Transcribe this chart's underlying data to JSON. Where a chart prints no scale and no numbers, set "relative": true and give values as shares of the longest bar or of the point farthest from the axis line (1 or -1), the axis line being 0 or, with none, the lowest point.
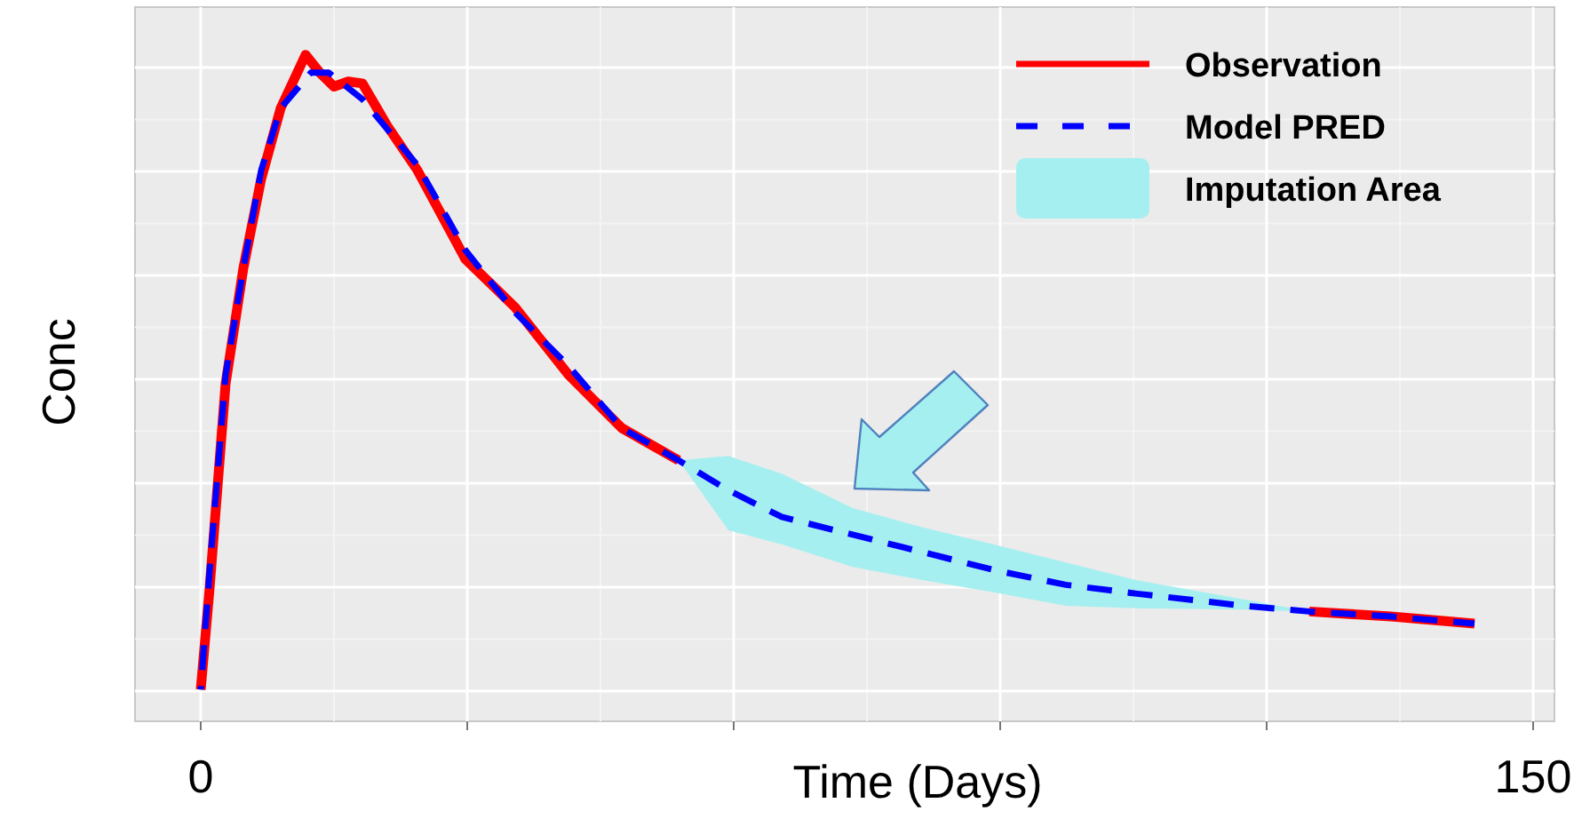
{
  "chart_data": {
    "type": "line",
    "relative": true,
    "xlabel": "Time (Days)",
    "ylabel": "Conc",
    "xlim": [
      -7.4,
      150.8
    ],
    "xticks": [
      0,
      {
        "value": 30,
        "label": null
      },
      {
        "value": 60,
        "label": null
      },
      {
        "value": 90,
        "label": null
      },
      {
        "value": 120,
        "label": null
      },
      150
    ],
    "grid": true,
    "legend": "top right",
    "annotations": [
      "Imputation Area"
    ],
    "series": [
      {
        "name": "Observation",
        "color": "#ff0000",
        "line_style": "solid",
        "x": [
          0,
          1,
          2.8,
          4.8,
          6.8,
          9,
          11.8,
          13.4,
          15,
          16.6,
          18.2,
          21,
          24.4,
          29.8,
          35.4,
          41.4,
          47.4,
          53.8,
          90,
          124.8,
          134,
          143.4
        ],
        "values": [
          0,
          0.16,
          0.482,
          0.664,
          0.804,
          0.916,
          1,
          0.972,
          0.95,
          0.958,
          0.955,
          0.888,
          0.818,
          0.678,
          0.602,
          0.496,
          0.412,
          0.361,
          null,
          0.123,
          0.115,
          0.104
        ]
      },
      {
        "name": "Model PRED",
        "color": "#0000ff",
        "line_style": "dashed",
        "x": [
          0,
          1,
          2.8,
          4.8,
          6.8,
          9,
          12.4,
          14.4,
          18.2,
          24.4,
          29.8,
          35.4,
          41.4,
          47.4,
          53.8,
          59.4,
          65.4,
          73.4,
          81.4,
          89.4,
          97.4,
          105.4,
          117.4,
          124.8,
          134,
          143.4
        ],
        "values": [
          0,
          0.188,
          0.496,
          0.664,
          0.818,
          0.916,
          0.972,
          0.972,
          0.93,
          0.826,
          0.692,
          0.594,
          0.51,
          0.412,
          0.361,
          0.314,
          0.272,
          0.244,
          0.216,
          0.188,
          0.165,
          0.151,
          0.132,
          0.123,
          0.115,
          0.104
        ],
        "lower": [
          null,
          null,
          null,
          null,
          null,
          null,
          null,
          null,
          null,
          null,
          null,
          null,
          null,
          null,
          0.361,
          0.251,
          0.229,
          0.193,
          0.172,
          0.153,
          0.132,
          0.128,
          0.126,
          0.123,
          null,
          null
        ],
        "upper": [
          null,
          null,
          null,
          null,
          null,
          null,
          null,
          null,
          null,
          null,
          null,
          null,
          null,
          null,
          0.361,
          0.368,
          0.34,
          0.286,
          0.255,
          0.228,
          0.2,
          0.172,
          0.142,
          0.123,
          null,
          null
        ]
      }
    ]
  }
}
